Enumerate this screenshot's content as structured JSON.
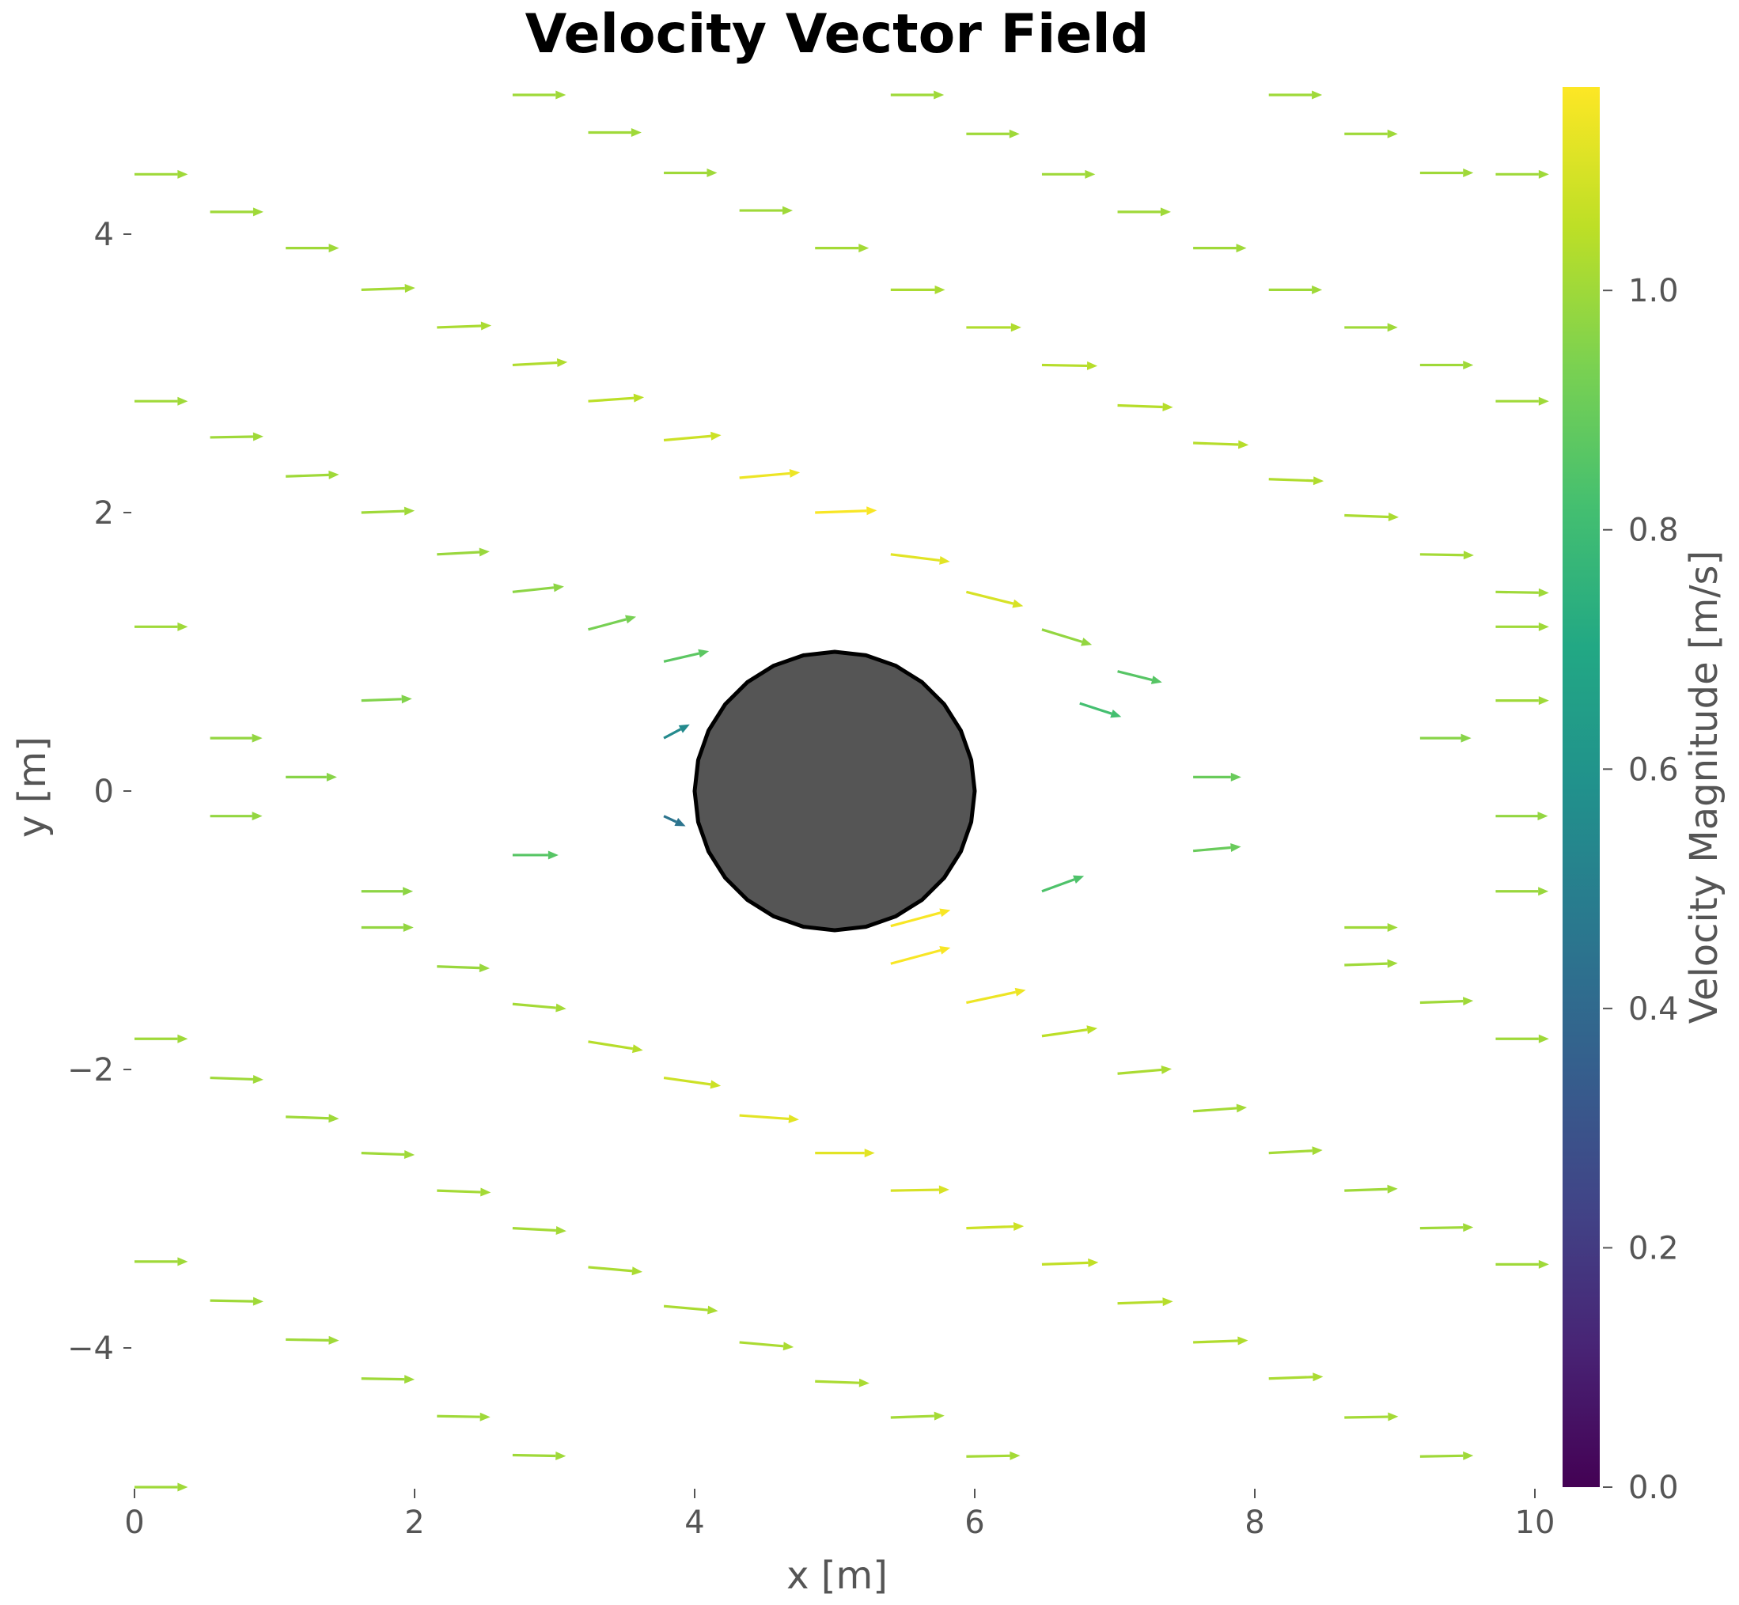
{
  "chart_data": {
    "type": "quiver",
    "title": "Velocity Vector Field",
    "xlabel": "x [m]",
    "ylabel": "y [m]",
    "xlim": [
      0,
      10
    ],
    "ylim": [
      -5,
      5
    ],
    "xticks": [
      0,
      2,
      4,
      6,
      8,
      10
    ],
    "yticks": [
      -4,
      -2,
      0,
      2,
      4
    ],
    "xtick_labels": [
      "0",
      "2",
      "4",
      "6",
      "8",
      "10"
    ],
    "ytick_labels": [
      "−4",
      "−2",
      "0",
      "2",
      "4"
    ],
    "grid": false,
    "obstacle": {
      "shape": "circle",
      "center": [
        5,
        0
      ],
      "radius": 1,
      "fill": "#555555",
      "edge": "#000000"
    },
    "colorbar": {
      "label": "Velocity Magnitude [m/s]",
      "colormap": "viridis",
      "range": [
        0,
        1.17
      ],
      "ticks": [
        0.0,
        0.2,
        0.4,
        0.6,
        0.8,
        1.0
      ],
      "tick_labels": [
        "0.0",
        "0.2",
        "0.4",
        "0.6",
        "0.8",
        "1.0"
      ]
    },
    "vectors": [
      [
        0.0,
        4.43,
        1.0
      ],
      [
        0.54,
        4.16,
        1.0
      ],
      [
        1.08,
        3.9,
        1.0
      ],
      [
        1.62,
        3.6,
        1.01
      ],
      [
        2.16,
        3.33,
        1.02
      ],
      [
        2.7,
        3.06,
        1.03
      ],
      [
        3.24,
        2.8,
        1.05
      ],
      [
        3.78,
        2.52,
        1.08
      ],
      [
        4.32,
        2.25,
        1.14
      ],
      [
        4.86,
        2.0,
        1.16
      ],
      [
        5.4,
        1.7,
        1.12
      ],
      [
        5.94,
        1.43,
        1.1
      ],
      [
        6.48,
        1.16,
        0.98
      ],
      [
        7.02,
        0.86,
        0.86
      ],
      [
        2.7,
        5.0,
        1.0
      ],
      [
        3.24,
        4.73,
        1.0
      ],
      [
        3.78,
        4.44,
        1.0
      ],
      [
        4.32,
        4.17,
        1.0
      ],
      [
        4.86,
        3.9,
        1.01
      ],
      [
        5.4,
        3.6,
        1.02
      ],
      [
        5.94,
        3.33,
        1.03
      ],
      [
        6.48,
        3.06,
        1.04
      ],
      [
        7.02,
        2.77,
        1.04
      ],
      [
        7.56,
        2.5,
        1.04
      ],
      [
        8.1,
        2.24,
        1.03
      ],
      [
        8.64,
        1.98,
        1.02
      ],
      [
        9.18,
        1.7,
        1.01
      ],
      [
        9.72,
        1.43,
        1.0
      ],
      [
        5.4,
        5.0,
        1.0
      ],
      [
        5.94,
        4.72,
        1.0
      ],
      [
        6.48,
        4.43,
        1.0
      ],
      [
        7.02,
        4.16,
        1.0
      ],
      [
        7.56,
        3.9,
        1.0
      ],
      [
        8.1,
        3.6,
        1.0
      ],
      [
        8.64,
        3.33,
        1.0
      ],
      [
        9.18,
        3.06,
        1.0
      ],
      [
        9.72,
        2.8,
        1.0
      ],
      [
        8.1,
        5.0,
        1.0
      ],
      [
        8.64,
        4.72,
        1.0
      ],
      [
        9.18,
        4.44,
        1.0
      ],
      [
        0.0,
        2.8,
        1.0
      ],
      [
        0.54,
        2.54,
        1.0
      ],
      [
        1.08,
        2.26,
        1.0
      ],
      [
        1.62,
        2.0,
        1.0
      ],
      [
        2.16,
        1.7,
        0.99
      ],
      [
        2.7,
        1.43,
        0.97
      ],
      [
        3.24,
        1.16,
        0.93
      ],
      [
        3.78,
        0.93,
        0.87
      ],
      [
        0.0,
        1.18,
        1.0
      ],
      [
        0.54,
        0.38,
        0.98
      ],
      [
        1.08,
        0.1,
        0.96
      ],
      [
        1.62,
        0.65,
        0.95
      ],
      [
        2.7,
        -0.46,
        0.86
      ],
      [
        3.78,
        0.38,
        0.55
      ],
      [
        3.78,
        -0.18,
        0.45
      ],
      [
        0.0,
        -1.78,
        1.0
      ],
      [
        0.54,
        -2.06,
        1.0
      ],
      [
        1.08,
        -2.34,
        1.0
      ],
      [
        1.62,
        -2.6,
        1.0
      ],
      [
        2.16,
        -2.87,
        1.01
      ],
      [
        2.7,
        -3.14,
        1.01
      ],
      [
        3.24,
        -3.42,
        1.02
      ],
      [
        3.78,
        -3.7,
        1.02
      ],
      [
        4.32,
        -3.96,
        1.02
      ],
      [
        4.86,
        -4.24,
        1.02
      ],
      [
        5.4,
        -4.5,
        1.01
      ],
      [
        5.94,
        -4.78,
        1.01
      ],
      [
        0.0,
        -3.38,
        1.0
      ],
      [
        0.54,
        -3.66,
        1.0
      ],
      [
        1.08,
        -3.94,
        1.0
      ],
      [
        1.62,
        -4.22,
        1.0
      ],
      [
        2.16,
        -4.49,
        1.0
      ],
      [
        2.7,
        -4.77,
        1.0
      ],
      [
        0.0,
        -5.0,
        1.0
      ],
      [
        0.54,
        -0.18,
        0.98
      ],
      [
        1.62,
        -0.72,
        0.97
      ],
      [
        1.62,
        -0.98,
        0.98
      ],
      [
        2.16,
        -1.26,
        0.99
      ],
      [
        2.7,
        -1.53,
        1.01
      ],
      [
        3.24,
        -1.8,
        1.04
      ],
      [
        3.78,
        -2.06,
        1.08
      ],
      [
        4.32,
        -2.33,
        1.12
      ],
      [
        4.86,
        -2.6,
        1.12
      ],
      [
        5.4,
        -2.87,
        1.1
      ],
      [
        5.94,
        -3.14,
        1.08
      ],
      [
        6.48,
        -3.4,
        1.06
      ],
      [
        7.02,
        -3.68,
        1.04
      ],
      [
        7.56,
        -3.96,
        1.03
      ],
      [
        8.1,
        -4.22,
        1.02
      ],
      [
        8.64,
        -4.5,
        1.01
      ],
      [
        9.18,
        -4.78,
        1.0
      ],
      [
        5.4,
        -0.97,
        1.16
      ],
      [
        5.4,
        -1.24,
        1.16
      ],
      [
        5.94,
        -1.52,
        1.14
      ],
      [
        6.48,
        -1.76,
        1.05
      ],
      [
        7.02,
        -2.03,
        1.02
      ],
      [
        7.56,
        -2.3,
        1.01
      ],
      [
        8.1,
        -2.6,
        1.01
      ],
      [
        8.64,
        -2.87,
        1.0
      ],
      [
        9.18,
        -3.14,
        1.0
      ],
      [
        9.72,
        -3.4,
        1.0
      ],
      [
        6.48,
        -0.72,
        0.84
      ],
      [
        7.56,
        -0.43,
        0.9
      ],
      [
        7.56,
        0.1,
        0.9
      ],
      [
        6.75,
        0.63,
        0.82
      ],
      [
        9.18,
        0.38,
        0.96
      ],
      [
        9.72,
        -0.18,
        0.98
      ],
      [
        9.72,
        -0.72,
        0.99
      ],
      [
        8.64,
        -0.98,
        1.0
      ],
      [
        8.64,
        -1.25,
        1.0
      ],
      [
        9.18,
        -1.52,
        1.0
      ],
      [
        9.72,
        -1.78,
        1.0
      ],
      [
        9.72,
        1.18,
        1.0
      ],
      [
        9.72,
        4.43,
        1.0
      ],
      [
        9.72,
        0.65,
        1.0
      ]
    ],
    "vector_angles_deg": [
      0,
      0,
      0,
      2,
      2,
      3,
      4,
      5,
      5,
      2,
      -7,
      -14,
      -17,
      -14,
      0,
      0,
      0,
      0,
      0,
      0,
      0,
      -1,
      -2,
      -2,
      -2,
      -2,
      -1,
      -1,
      0,
      0,
      0,
      0,
      0,
      0,
      0,
      0,
      0,
      0,
      0,
      0,
      0,
      1,
      2,
      2,
      3,
      6,
      15,
      13,
      0,
      0,
      0,
      2,
      0,
      28,
      -25,
      0,
      -2,
      -2,
      -2,
      -2,
      -3,
      -5,
      -5,
      -5,
      -2,
      2,
      1,
      0,
      -1,
      -1,
      -1,
      -1,
      -1,
      0,
      0,
      0,
      0,
      -2,
      -5,
      -9,
      -8,
      -4,
      0,
      1,
      2,
      2,
      2,
      2,
      2,
      1,
      1,
      15,
      15,
      12,
      8,
      5,
      4,
      3,
      2,
      1,
      0,
      20,
      5,
      0,
      -18,
      0,
      0,
      0,
      0,
      2,
      2,
      0,
      0,
      0,
      0
    ]
  }
}
